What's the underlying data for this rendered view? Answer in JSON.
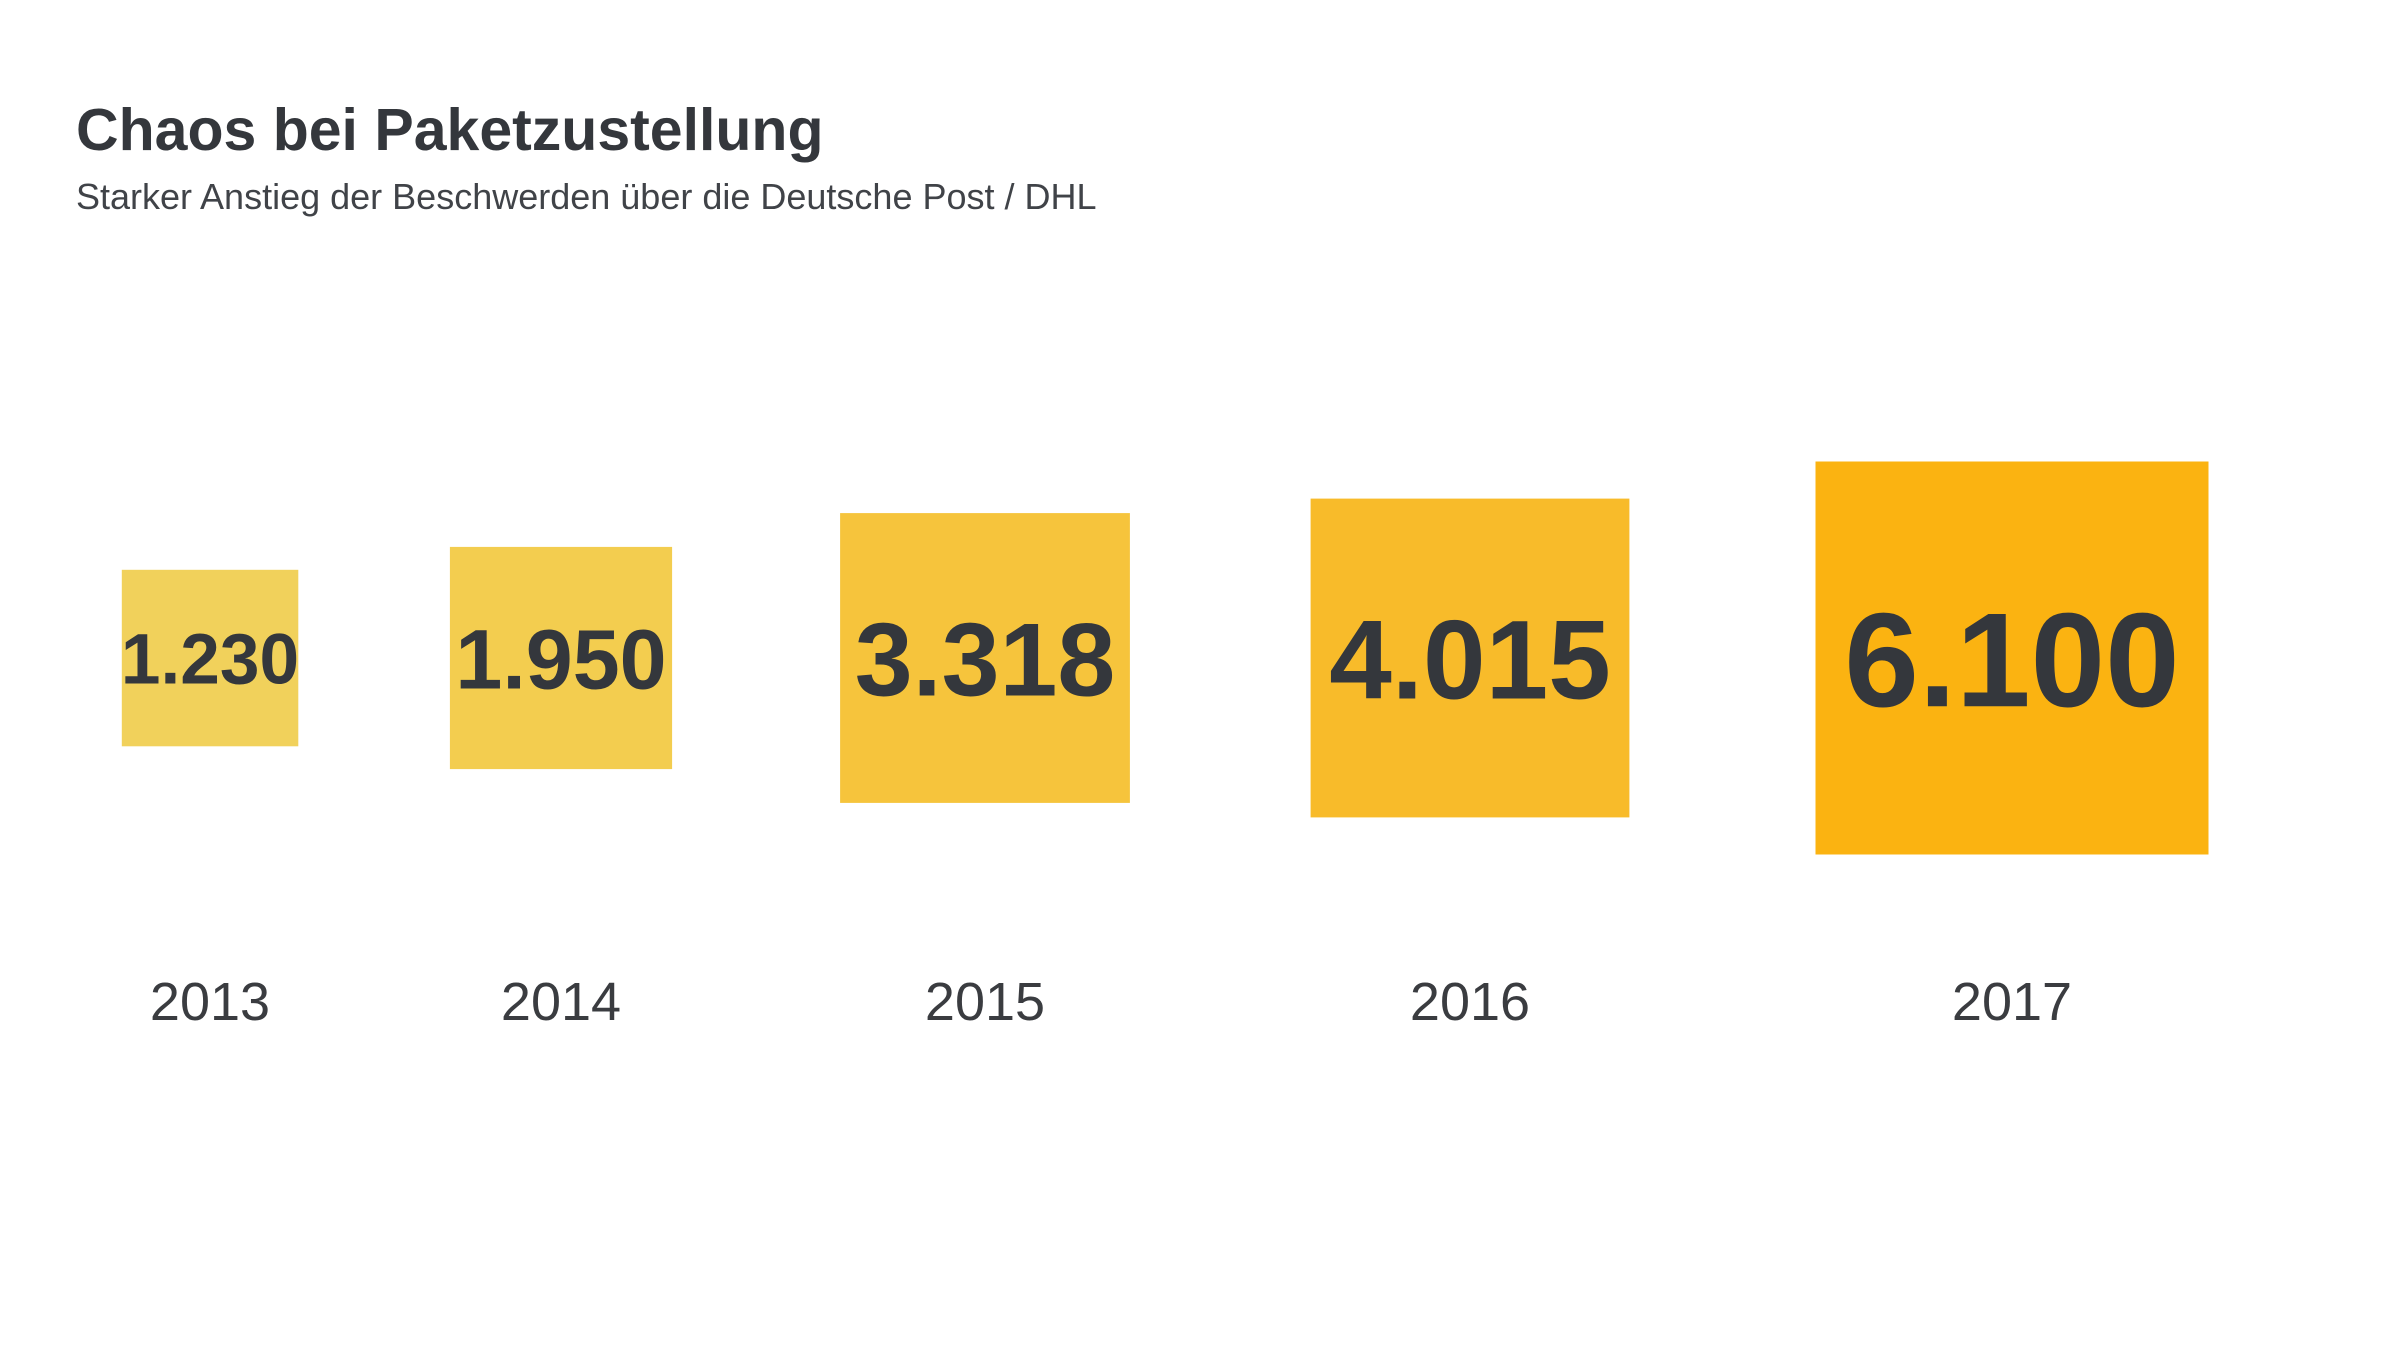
{
  "header": {
    "title": "Chaos bei Paketzustellung",
    "subtitle": "Starker Anstieg der Beschwerden über die Deutsche Post / DHL"
  },
  "chart_data": {
    "type": "bar",
    "title": "Chaos bei Paketzustellung",
    "subtitle": "Starker Anstieg der Beschwerden über die Deutsche Post / DHL",
    "categories": [
      "2013",
      "2014",
      "2015",
      "2016",
      "2017"
    ],
    "values": [
      1230,
      1950,
      3318,
      4015,
      6100
    ],
    "value_labels": [
      "1.230",
      "1.950",
      "3.318",
      "4.015",
      "6.100"
    ],
    "colors": [
      "#f1d15b",
      "#f3cd4f",
      "#f6c43c",
      "#f8bb2a",
      "#fbb311"
    ],
    "legend": "none",
    "grid": false
  }
}
